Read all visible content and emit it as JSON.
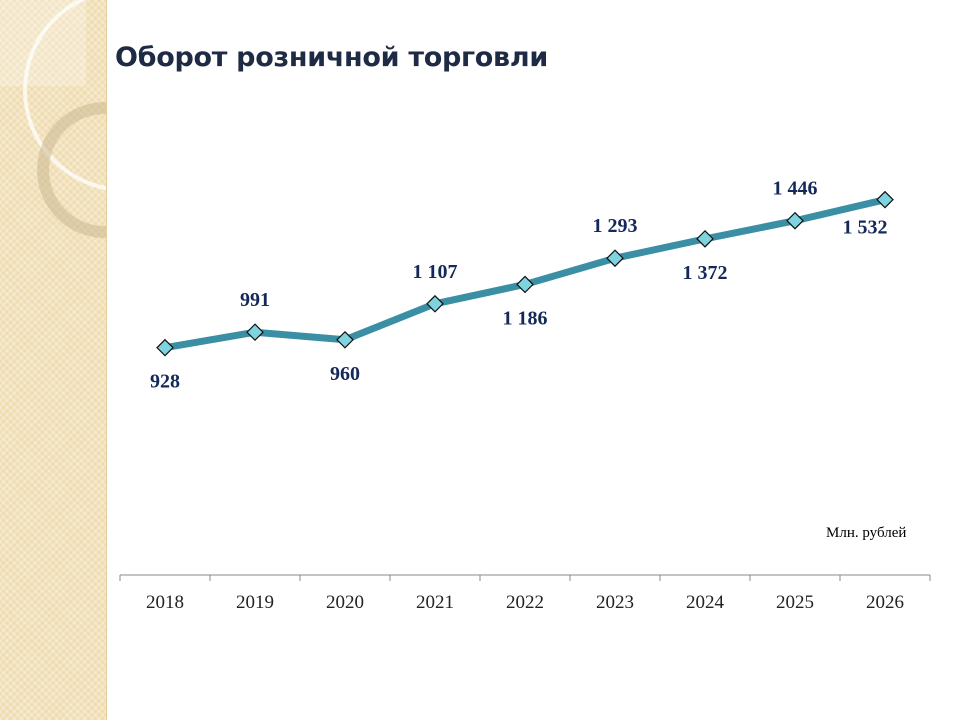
{
  "title": "Оборот розничной торговли",
  "chart_data": {
    "type": "line",
    "title": "Оборот розничной торговли",
    "unit_label": "Млн. рублей",
    "categories": [
      "2018",
      "2019",
      "2020",
      "2021",
      "2022",
      "2023",
      "2024",
      "2025",
      "2026"
    ],
    "values": [
      928,
      991,
      960,
      1107,
      1186,
      1293,
      1372,
      1446,
      1532
    ],
    "data_labels": [
      "928",
      "991",
      "960",
      "1 107",
      "1 186",
      "1 293",
      "1 372",
      "1 446",
      "1 532"
    ],
    "ylim": [
      0,
      1800
    ],
    "grid": false,
    "legend": "none",
    "line_color": "#3a8fa4",
    "marker": "diamond",
    "marker_color": "#7fd3df"
  }
}
